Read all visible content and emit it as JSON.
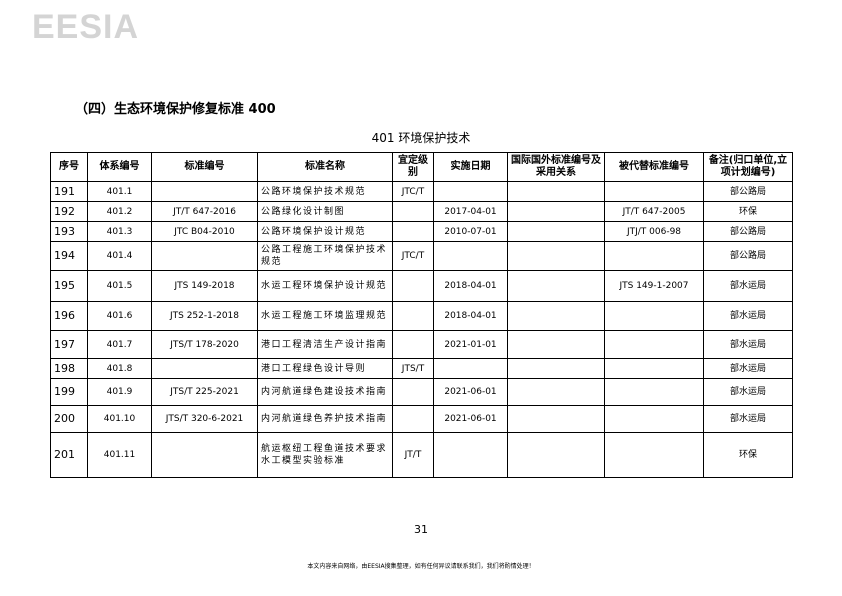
{
  "logo": "EESIA",
  "section_title": "（四）生态环境保护修复标准 400",
  "subtitle": "401 环境保护技术",
  "table": {
    "headers": [
      "序号",
      "体系编号",
      "标准编号",
      "标准名称",
      "宜定级别",
      "实施日期",
      "国际国外标准编号及采用关系",
      "被代替标准编号",
      "备注(归口单位,立项计划编号)"
    ],
    "rows": [
      [
        "191",
        "401.1",
        "",
        "公路环境保护技术规范",
        "JTC/T",
        "",
        "",
        "",
        "部公路局"
      ],
      [
        "192",
        "401.2",
        "JT/T 647-2016",
        "公路绿化设计制图",
        "",
        "2017-04-01",
        "",
        "JT/T 647-2005",
        "环保"
      ],
      [
        "193",
        "401.3",
        "JTC B04-2010",
        "公路环境保护设计规范",
        "",
        "2010-07-01",
        "",
        "JTJ/T 006-98",
        "部公路局"
      ],
      [
        "194",
        "401.4",
        "",
        "公路工程施工环境保护技术规范",
        "JTC/T",
        "",
        "",
        "",
        "部公路局"
      ],
      [
        "195",
        "401.5",
        "JTS 149-2018",
        "水运工程环境保护设计规范",
        "",
        "2018-04-01",
        "",
        "JTS 149-1-2007",
        "部水运局"
      ],
      [
        "196",
        "401.6",
        "JTS 252-1-2018",
        "水运工程施工环境监理规范",
        "",
        "2018-04-01",
        "",
        "",
        "部水运局"
      ],
      [
        "197",
        "401.7",
        "JTS/T 178-2020",
        "港口工程清洁生产设计指南",
        "",
        "2021-01-01",
        "",
        "",
        "部水运局"
      ],
      [
        "198",
        "401.8",
        "",
        "港口工程绿色设计导则",
        "JTS/T",
        "",
        "",
        "",
        "部水运局"
      ],
      [
        "199",
        "401.9",
        "JTS/T 225-2021",
        "内河航道绿色建设技术指南",
        "",
        "2021-06-01",
        "",
        "",
        "部水运局"
      ],
      [
        "200",
        "401.10",
        "JTS/T 320-6-2021",
        "内河航道绿色养护技术指南",
        "",
        "2021-06-01",
        "",
        "",
        "部水运局"
      ],
      [
        "201",
        "401.11",
        "",
        "航运枢纽工程鱼道技术要求 水工模型实验标准",
        "JT/T",
        "",
        "",
        "",
        "环保"
      ]
    ]
  },
  "page_number": "31",
  "footer": "本文内容来自网络，由EESIA搜集整理，如有任何异议请联系我们，我们将酌情处理！"
}
